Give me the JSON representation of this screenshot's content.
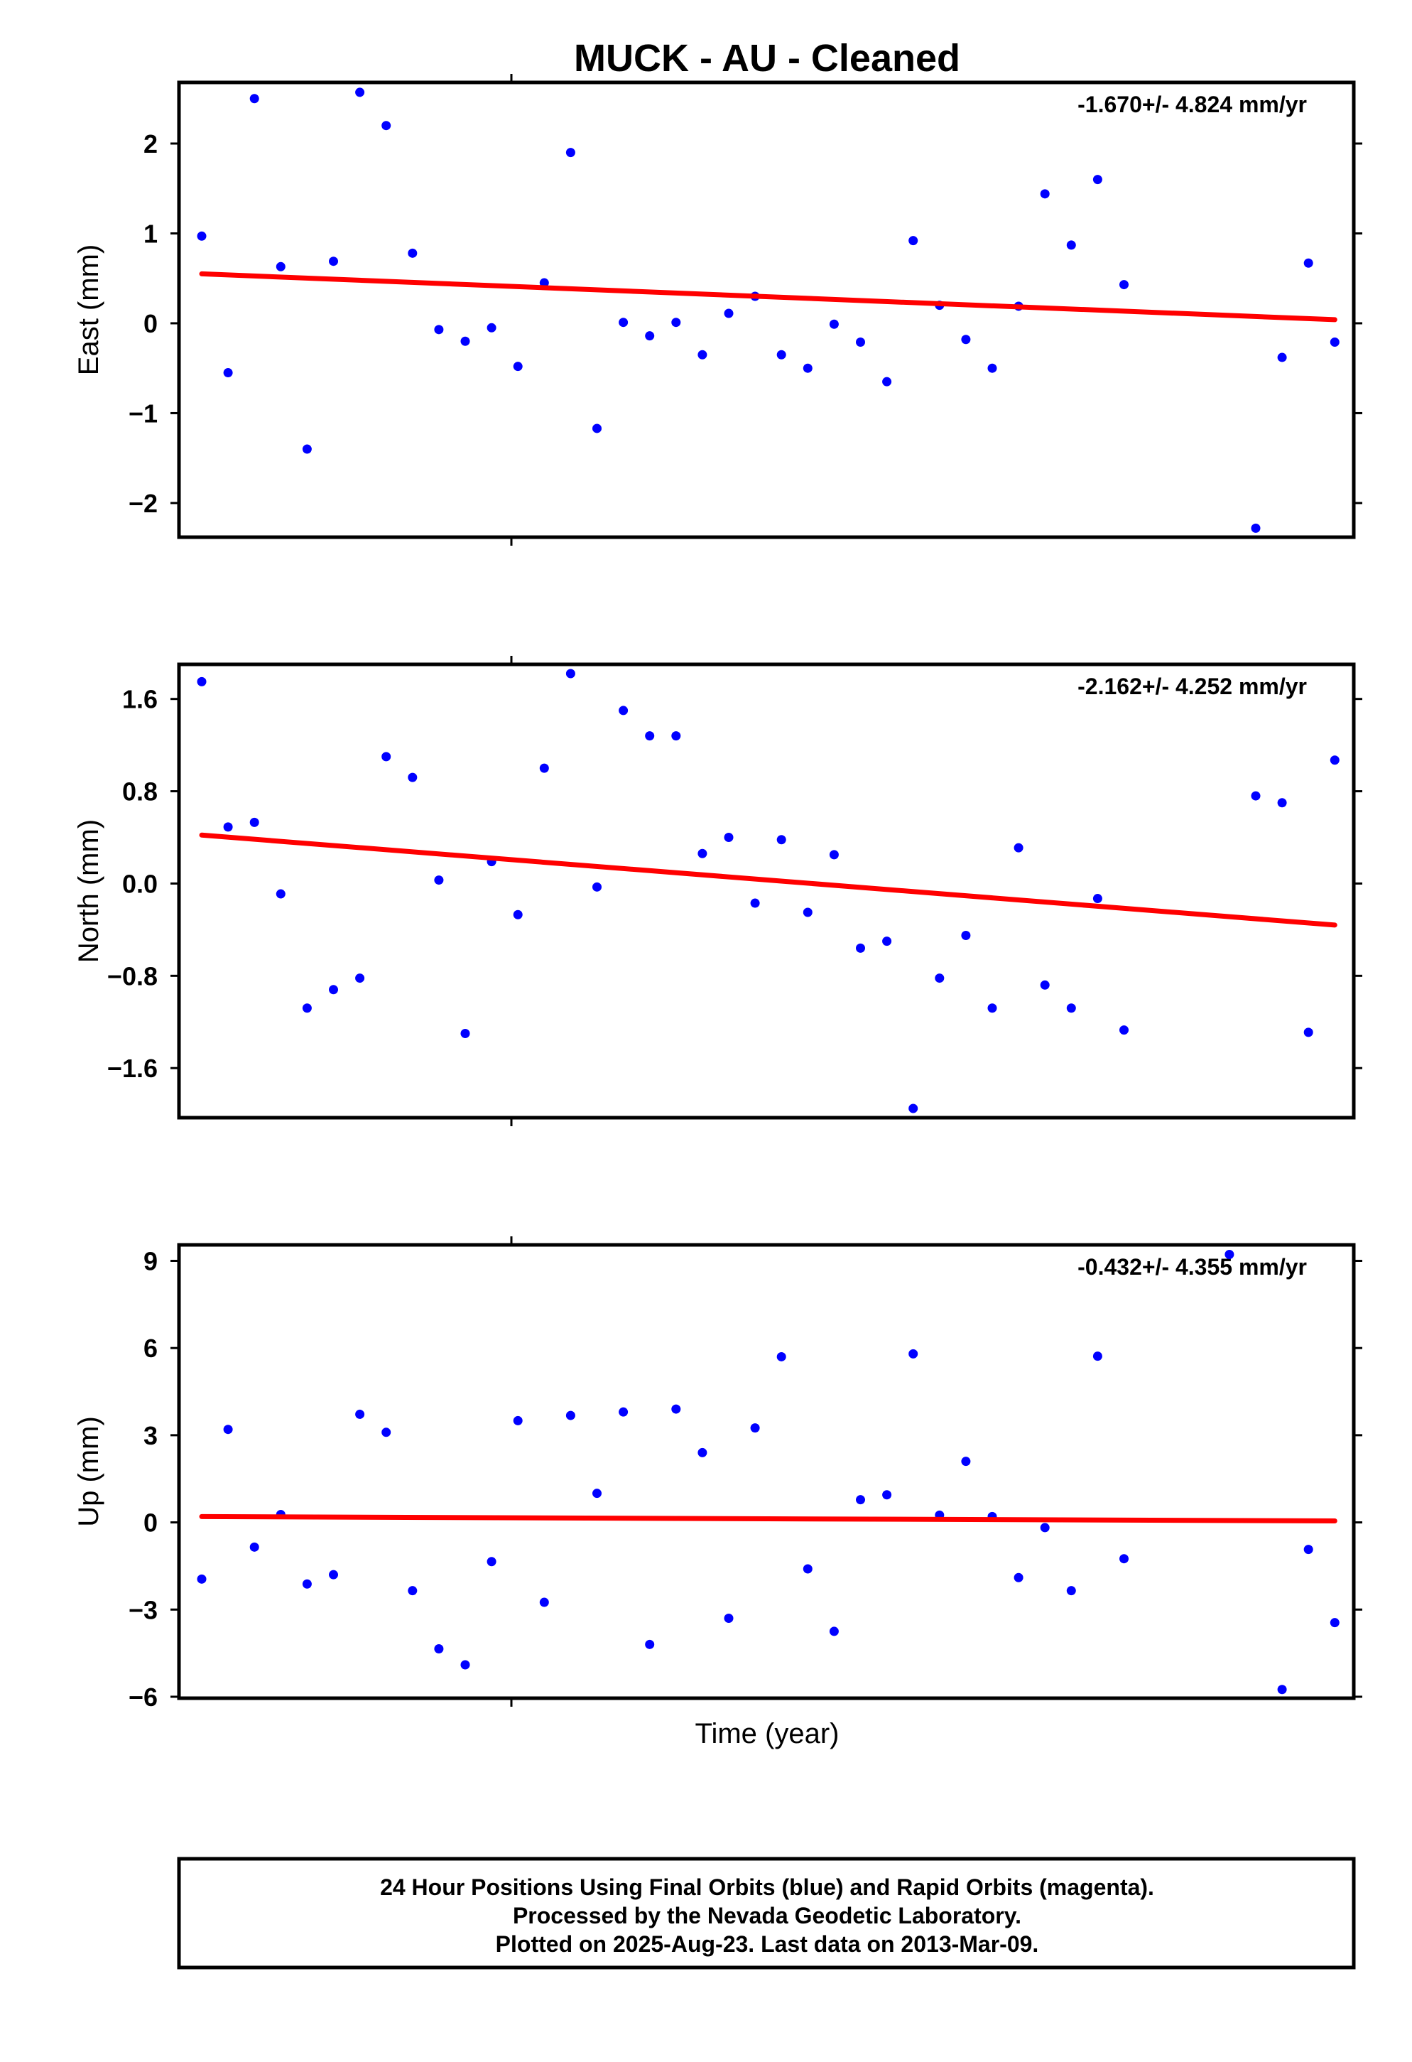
{
  "title": "MUCK  - AU - Cleaned",
  "colors": {
    "final_orbits": "#0000ff",
    "rapid_orbits": "#ff00ff",
    "trend": "#ff0000",
    "frame": "#000000"
  },
  "chart_data": [
    {
      "type": "scatter",
      "ylabel": "East (mm)",
      "rate": "-1.670+/- 4.824 mm/yr",
      "ylim": [
        -2.38,
        2.68
      ],
      "yticks": [
        2,
        1,
        0,
        -1,
        -2
      ],
      "ytick_labels": [
        "2",
        "1",
        "0",
        "−1",
        "−2"
      ],
      "trend": [
        0.55,
        0.04
      ],
      "values": [
        0.97,
        -0.55,
        2.5,
        0.63,
        -1.4,
        0.69,
        2.57,
        2.2,
        0.78,
        -0.07,
        -0.2,
        -0.05,
        -0.48,
        0.45,
        1.9,
        -1.17,
        0.01,
        -0.14,
        0.01,
        -0.35,
        0.11,
        0.3,
        -0.35,
        -0.5,
        -0.01,
        -0.21,
        -0.65,
        0.92,
        0.2,
        -0.18,
        -0.5,
        0.19,
        1.44,
        0.87,
        1.6,
        0.43,
        null,
        null,
        null,
        null,
        -2.28,
        -0.38,
        0.67,
        -0.21
      ]
    },
    {
      "type": "scatter",
      "ylabel": "North (mm)",
      "rate": "-2.162+/- 4.252 mm/yr",
      "ylim": [
        -2.03,
        1.9
      ],
      "yticks": [
        1.6,
        0.8,
        0.0,
        -0.8,
        -1.6
      ],
      "ytick_labels": [
        "1.6",
        "0.8",
        "0.0",
        "−0.8",
        "−1.6"
      ],
      "trend": [
        0.42,
        -0.36
      ],
      "values": [
        1.75,
        0.49,
        0.53,
        -0.09,
        -1.08,
        -0.92,
        -0.82,
        1.1,
        0.92,
        0.03,
        -1.3,
        0.19,
        -0.27,
        1.0,
        1.82,
        -0.03,
        1.5,
        1.28,
        1.28,
        0.26,
        0.4,
        -0.17,
        0.38,
        -0.25,
        0.25,
        -0.56,
        -0.5,
        -1.95,
        -0.82,
        -0.45,
        -1.08,
        0.31,
        -0.88,
        -1.08,
        -0.13,
        -1.27,
        null,
        null,
        null,
        null,
        0.76,
        0.7,
        -1.29,
        1.07
      ]
    },
    {
      "type": "scatter",
      "ylabel": "Up (mm)",
      "rate": "-0.432+/- 4.355 mm/yr",
      "ylim": [
        -6.05,
        9.55
      ],
      "yticks": [
        9,
        6,
        3,
        0,
        -3,
        -6
      ],
      "ytick_labels": [
        "9",
        "6",
        "3",
        "0",
        "−3",
        "−6"
      ],
      "trend": [
        0.2,
        0.05
      ],
      "values": [
        -1.95,
        3.2,
        -0.85,
        0.27,
        -2.12,
        -1.8,
        3.72,
        3.1,
        -2.35,
        -4.35,
        -4.9,
        -1.35,
        3.5,
        -2.75,
        3.68,
        1.0,
        3.8,
        -4.2,
        3.9,
        2.4,
        -3.3,
        3.25,
        5.7,
        -1.6,
        -3.75,
        0.78,
        0.95,
        5.8,
        0.25,
        2.1,
        0.2,
        -1.9,
        -0.18,
        -2.35,
        5.72,
        -1.25,
        null,
        null,
        null,
        9.22,
        null,
        -5.75,
        -0.93,
        -3.45
      ]
    }
  ],
  "xlabel": "Time (year)",
  "footer": {
    "line1": "24 Hour Positions Using Final Orbits (blue) and Rapid Orbits (magenta).",
    "line2": "Processed by the Nevada Geodetic Laboratory.",
    "line3": "Plotted on 2025-Aug-23. Last data on 2013-Mar-09."
  }
}
